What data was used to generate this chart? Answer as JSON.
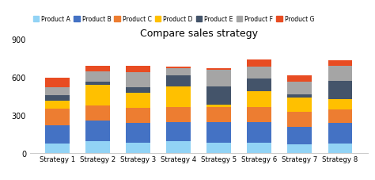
{
  "title": "Compare sales strategy",
  "categories": [
    "Strategy 1",
    "Strategy 2",
    "Strategy 3",
    "Strategy 4",
    "Strategy 5",
    "Strategy 6",
    "Strategy 7",
    "Strategy 8"
  ],
  "products": [
    "Product A",
    "Product B",
    "Product C",
    "Product D",
    "Product E",
    "Product F",
    "Product G"
  ],
  "colors": [
    "#92d3f5",
    "#4472c4",
    "#ed7d31",
    "#ffc000",
    "#44546a",
    "#a5a5a5",
    "#e84c22"
  ],
  "values": {
    "Product A": [
      75,
      95,
      80,
      95,
      80,
      80,
      65,
      75
    ],
    "Product B": [
      145,
      160,
      155,
      150,
      160,
      160,
      140,
      160
    ],
    "Product C": [
      130,
      120,
      120,
      120,
      120,
      120,
      120,
      110
    ],
    "Product D": [
      60,
      160,
      120,
      160,
      20,
      130,
      115,
      80
    ],
    "Product E": [
      45,
      25,
      45,
      90,
      145,
      95,
      25,
      145
    ],
    "Product F": [
      65,
      85,
      115,
      55,
      130,
      95,
      100,
      115
    ],
    "Product G": [
      75,
      45,
      55,
      10,
      15,
      60,
      50,
      45
    ]
  },
  "ylim": [
    0,
    900
  ],
  "yticks": [
    0,
    300,
    600,
    900
  ],
  "background_color": "#ffffff"
}
